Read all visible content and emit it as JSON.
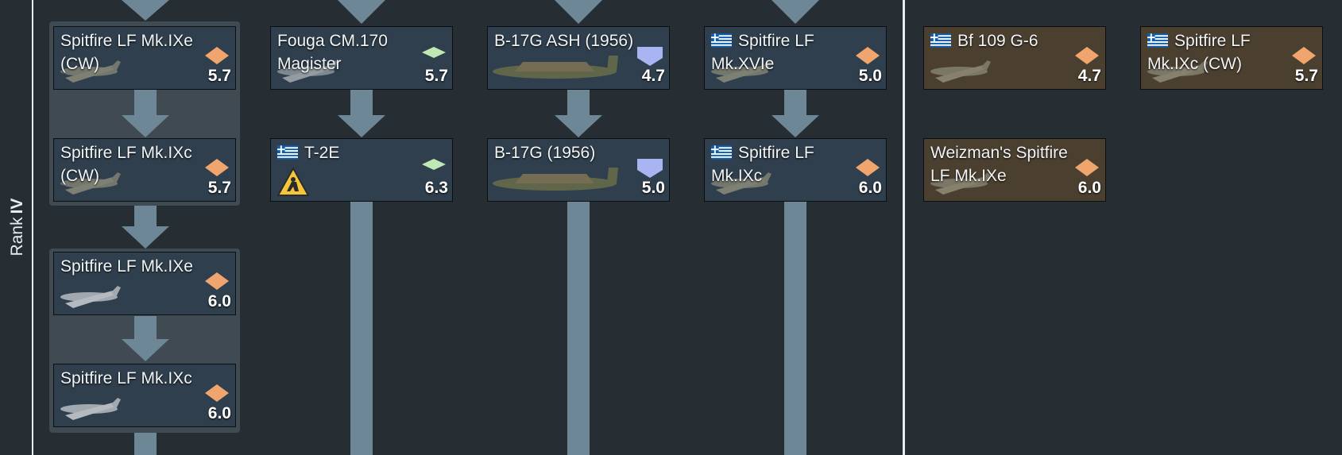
{
  "rank": {
    "label": "Rank",
    "numeral": "IV"
  },
  "colors": {
    "background": "#262d33",
    "card": "#2f3f4d",
    "premium_card": "#4b4030",
    "line": "#6d8797",
    "fighter_icon": "#f0a56e",
    "attacker_icon": "#bfe8b4",
    "bomber_icon": "#a9b4f2"
  },
  "vehicles": [
    {
      "id": "spitfire-lf-mkixe-cw",
      "name": "Spitfire LF Mk.IXe (CW)",
      "br": "5.7",
      "role": "fighter-icon",
      "flag": false,
      "premium": false
    },
    {
      "id": "spitfire-lf-mkixc-cw",
      "name": "Spitfire LF Mk.IXc (CW)",
      "br": "5.7",
      "role": "fighter-icon",
      "flag": false,
      "premium": false
    },
    {
      "id": "spitfire-lf-mkixe",
      "name": "Spitfire LF Mk.IXe",
      "br": "6.0",
      "role": "fighter-icon",
      "flag": false,
      "premium": false
    },
    {
      "id": "spitfire-lf-mkixc",
      "name": "Spitfire LF Mk.IXc",
      "br": "6.0",
      "role": "fighter-icon",
      "flag": false,
      "premium": false
    },
    {
      "id": "fouga-cm170-magister",
      "name": "Fouga CM.170 Magister",
      "br": "5.7",
      "role": "attacker-icon",
      "flag": false,
      "premium": false
    },
    {
      "id": "t-2e",
      "name": "T-2E",
      "br": "6.3",
      "role": "attacker-icon",
      "flag": true,
      "premium": false
    },
    {
      "id": "b-17g-ash-1956",
      "name": "B-17G ASH (1956)",
      "br": "4.7",
      "role": "bomber-icon",
      "flag": false,
      "premium": false
    },
    {
      "id": "b-17g-1956",
      "name": "B-17G (1956)",
      "br": "5.0",
      "role": "bomber-icon",
      "flag": false,
      "premium": false
    },
    {
      "id": "greek-spitfire-lf-mkxvie",
      "name": "Spitfire LF Mk.XVIe",
      "br": "5.0",
      "role": "fighter-icon",
      "flag": true,
      "premium": false
    },
    {
      "id": "greek-spitfire-lf-mkixc",
      "name": "Spitfire LF Mk.IXc",
      "br": "6.0",
      "role": "fighter-icon",
      "flag": true,
      "premium": false
    },
    {
      "id": "greek-bf-109-g6",
      "name": "Bf 109 G-6",
      "br": "4.7",
      "role": "fighter-icon",
      "flag": true,
      "premium": true
    },
    {
      "id": "weizman-spitfire-lf-mkixe",
      "name": "Weizman's Spitfire LF Mk.IXe",
      "br": "6.0",
      "role": "fighter-icon",
      "flag": false,
      "premium": true
    },
    {
      "id": "greek-spitfire-lf-mkixc-cw",
      "name": "Spitfire LF Mk.IXc (CW)",
      "br": "5.7",
      "role": "fighter-icon",
      "flag": true,
      "premium": true
    }
  ]
}
